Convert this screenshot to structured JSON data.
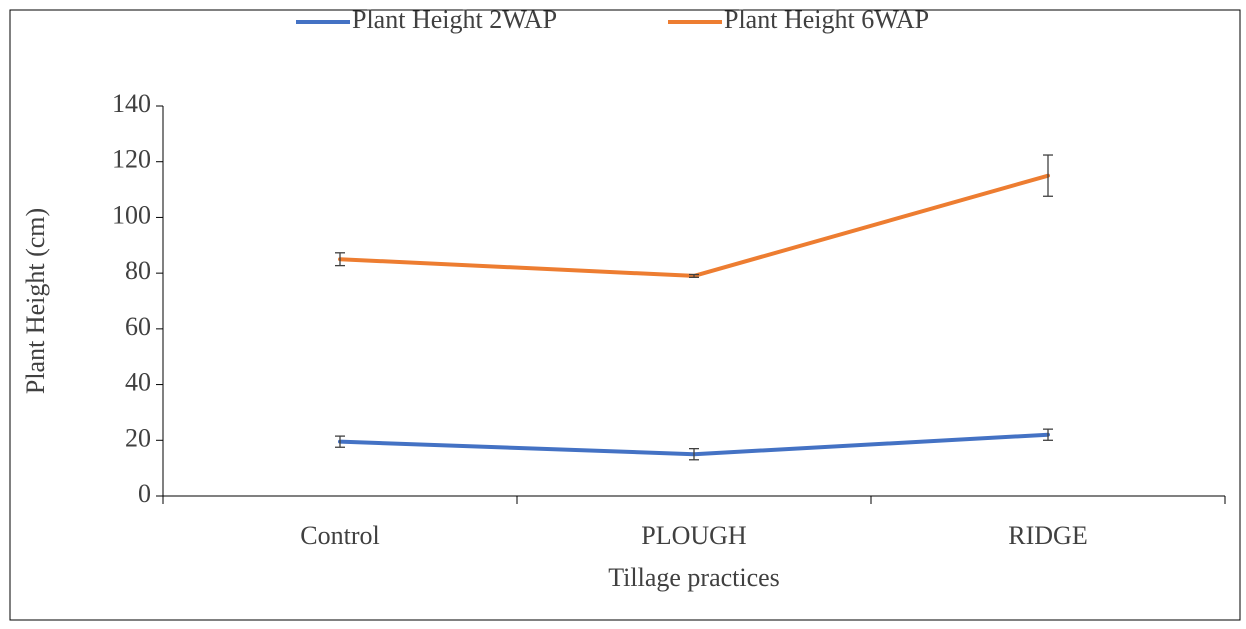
{
  "chart_data": {
    "type": "line",
    "x_label": "Tillage practices",
    "y_label": "Plant Height (cm)",
    "categories": [
      "Control",
      "PLOUGH",
      "RIDGE"
    ],
    "series": [
      {
        "name": "Plant Height 2WAP",
        "color": "#4472c4",
        "values": [
          19.5,
          15,
          22
        ],
        "errors": [
          2,
          2,
          2
        ]
      },
      {
        "name": "Plant Height 6WAP",
        "color": "#ed7d31",
        "values": [
          85,
          79,
          115
        ],
        "errors": [
          2.3,
          0.5,
          7.4
        ]
      }
    ],
    "ylim": [
      0,
      140
    ],
    "yticks": [
      0,
      20,
      40,
      60,
      80,
      100,
      120,
      140
    ],
    "grid": false,
    "legend": "top"
  }
}
